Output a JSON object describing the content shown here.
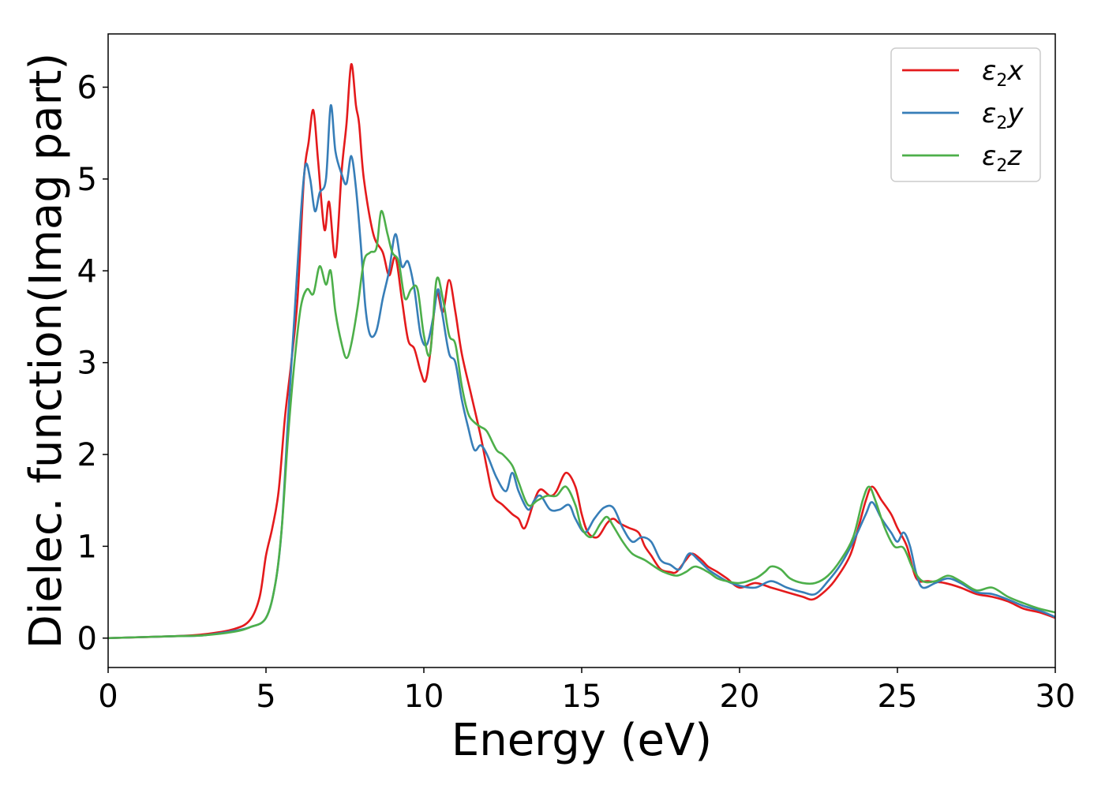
{
  "chart_data": {
    "type": "line",
    "xlabel": "Energy (eV)",
    "ylabel": "Dielec. function(Imag part)",
    "xlim": [
      0,
      30
    ],
    "ylim": [
      -0.32,
      6.58
    ],
    "x_ticks": [
      0,
      5,
      10,
      15,
      20,
      25,
      30
    ],
    "y_ticks": [
      0,
      1,
      2,
      3,
      4,
      5,
      6
    ],
    "grid": false,
    "legend_position": "top-right",
    "series": [
      {
        "name": "ε₂x",
        "legend_main": "ε",
        "legend_sub": "2",
        "legend_suffix": "x",
        "color": "#e41a1c",
        "points": [
          [
            0,
            0
          ],
          [
            2,
            0.02
          ],
          [
            3,
            0.04
          ],
          [
            4,
            0.1
          ],
          [
            4.5,
            0.2
          ],
          [
            4.8,
            0.45
          ],
          [
            5,
            0.9
          ],
          [
            5.2,
            1.2
          ],
          [
            5.4,
            1.6
          ],
          [
            5.6,
            2.4
          ],
          [
            5.8,
            3.0
          ],
          [
            6,
            3.7
          ],
          [
            6.2,
            5.0
          ],
          [
            6.35,
            5.4
          ],
          [
            6.5,
            5.75
          ],
          [
            6.65,
            5.2
          ],
          [
            6.85,
            4.45
          ],
          [
            7.0,
            4.75
          ],
          [
            7.2,
            4.15
          ],
          [
            7.4,
            5.1
          ],
          [
            7.55,
            5.6
          ],
          [
            7.7,
            6.25
          ],
          [
            7.85,
            5.8
          ],
          [
            7.95,
            5.6
          ],
          [
            8.1,
            5.0
          ],
          [
            8.4,
            4.4
          ],
          [
            8.7,
            4.2
          ],
          [
            8.9,
            3.95
          ],
          [
            9.1,
            4.15
          ],
          [
            9.3,
            3.7
          ],
          [
            9.5,
            3.25
          ],
          [
            9.7,
            3.15
          ],
          [
            9.9,
            2.9
          ],
          [
            10.05,
            2.8
          ],
          [
            10.2,
            3.1
          ],
          [
            10.4,
            3.75
          ],
          [
            10.6,
            3.55
          ],
          [
            10.8,
            3.9
          ],
          [
            11.0,
            3.55
          ],
          [
            11.2,
            3.1
          ],
          [
            11.5,
            2.65
          ],
          [
            11.8,
            2.2
          ],
          [
            12.0,
            1.85
          ],
          [
            12.2,
            1.55
          ],
          [
            12.5,
            1.45
          ],
          [
            12.8,
            1.35
          ],
          [
            13.0,
            1.3
          ],
          [
            13.2,
            1.2
          ],
          [
            13.5,
            1.5
          ],
          [
            13.7,
            1.62
          ],
          [
            14.0,
            1.55
          ],
          [
            14.2,
            1.6
          ],
          [
            14.5,
            1.8
          ],
          [
            14.8,
            1.65
          ],
          [
            15.0,
            1.35
          ],
          [
            15.2,
            1.15
          ],
          [
            15.5,
            1.1
          ],
          [
            15.8,
            1.25
          ],
          [
            16.0,
            1.3
          ],
          [
            16.2,
            1.25
          ],
          [
            16.5,
            1.2
          ],
          [
            16.8,
            1.15
          ],
          [
            17.0,
            1.0
          ],
          [
            17.2,
            0.9
          ],
          [
            17.5,
            0.75
          ],
          [
            17.8,
            0.72
          ],
          [
            18.0,
            0.72
          ],
          [
            18.3,
            0.85
          ],
          [
            18.5,
            0.92
          ],
          [
            18.8,
            0.85
          ],
          [
            19.0,
            0.78
          ],
          [
            19.3,
            0.72
          ],
          [
            19.6,
            0.65
          ],
          [
            20.0,
            0.55
          ],
          [
            20.5,
            0.6
          ],
          [
            21.0,
            0.55
          ],
          [
            21.5,
            0.5
          ],
          [
            22.0,
            0.45
          ],
          [
            22.3,
            0.42
          ],
          [
            22.6,
            0.48
          ],
          [
            23.0,
            0.62
          ],
          [
            23.5,
            0.9
          ],
          [
            23.8,
            1.25
          ],
          [
            24.0,
            1.5
          ],
          [
            24.2,
            1.65
          ],
          [
            24.5,
            1.5
          ],
          [
            24.8,
            1.35
          ],
          [
            25.0,
            1.2
          ],
          [
            25.3,
            1.0
          ],
          [
            25.6,
            0.65
          ],
          [
            26.0,
            0.62
          ],
          [
            26.5,
            0.6
          ],
          [
            27.0,
            0.55
          ],
          [
            27.5,
            0.48
          ],
          [
            28.0,
            0.45
          ],
          [
            28.5,
            0.4
          ],
          [
            29.0,
            0.32
          ],
          [
            29.5,
            0.28
          ],
          [
            30,
            0.22
          ]
        ]
      },
      {
        "name": "ε₂y",
        "legend_main": "ε",
        "legend_sub": "2",
        "legend_suffix": "y",
        "color": "#377eb8",
        "points": [
          [
            0,
            0
          ],
          [
            2,
            0.02
          ],
          [
            3,
            0.03
          ],
          [
            4,
            0.08
          ],
          [
            4.5,
            0.12
          ],
          [
            5,
            0.22
          ],
          [
            5.3,
            0.6
          ],
          [
            5.5,
            1.2
          ],
          [
            5.7,
            2.4
          ],
          [
            5.9,
            3.5
          ],
          [
            6.1,
            4.6
          ],
          [
            6.25,
            5.15
          ],
          [
            6.4,
            5.0
          ],
          [
            6.55,
            4.65
          ],
          [
            6.7,
            4.85
          ],
          [
            6.9,
            5.0
          ],
          [
            7.05,
            5.8
          ],
          [
            7.2,
            5.3
          ],
          [
            7.4,
            5.05
          ],
          [
            7.55,
            4.95
          ],
          [
            7.7,
            5.25
          ],
          [
            7.85,
            4.9
          ],
          [
            8.0,
            4.3
          ],
          [
            8.15,
            3.6
          ],
          [
            8.3,
            3.3
          ],
          [
            8.5,
            3.35
          ],
          [
            8.7,
            3.7
          ],
          [
            8.9,
            4.0
          ],
          [
            9.1,
            4.4
          ],
          [
            9.3,
            4.05
          ],
          [
            9.5,
            4.1
          ],
          [
            9.7,
            3.8
          ],
          [
            9.9,
            3.3
          ],
          [
            10.1,
            3.2
          ],
          [
            10.3,
            3.5
          ],
          [
            10.45,
            3.8
          ],
          [
            10.6,
            3.5
          ],
          [
            10.8,
            3.1
          ],
          [
            11.0,
            3.0
          ],
          [
            11.2,
            2.6
          ],
          [
            11.4,
            2.3
          ],
          [
            11.6,
            2.05
          ],
          [
            11.8,
            2.1
          ],
          [
            12.0,
            2.0
          ],
          [
            12.3,
            1.75
          ],
          [
            12.6,
            1.6
          ],
          [
            12.8,
            1.8
          ],
          [
            13.0,
            1.6
          ],
          [
            13.3,
            1.4
          ],
          [
            13.5,
            1.5
          ],
          [
            13.7,
            1.55
          ],
          [
            14.0,
            1.4
          ],
          [
            14.3,
            1.4
          ],
          [
            14.6,
            1.45
          ],
          [
            14.8,
            1.3
          ],
          [
            15.1,
            1.15
          ],
          [
            15.4,
            1.3
          ],
          [
            15.7,
            1.42
          ],
          [
            16.0,
            1.42
          ],
          [
            16.3,
            1.2
          ],
          [
            16.6,
            1.05
          ],
          [
            16.9,
            1.1
          ],
          [
            17.2,
            1.05
          ],
          [
            17.5,
            0.85
          ],
          [
            17.8,
            0.8
          ],
          [
            18.1,
            0.75
          ],
          [
            18.4,
            0.92
          ],
          [
            18.7,
            0.85
          ],
          [
            19.0,
            0.75
          ],
          [
            19.3,
            0.68
          ],
          [
            19.6,
            0.62
          ],
          [
            20.0,
            0.57
          ],
          [
            20.5,
            0.55
          ],
          [
            21.0,
            0.62
          ],
          [
            21.5,
            0.55
          ],
          [
            22.0,
            0.5
          ],
          [
            22.4,
            0.48
          ],
          [
            22.8,
            0.62
          ],
          [
            23.2,
            0.8
          ],
          [
            23.6,
            1.05
          ],
          [
            24.0,
            1.35
          ],
          [
            24.2,
            1.48
          ],
          [
            24.5,
            1.3
          ],
          [
            24.8,
            1.15
          ],
          [
            25.0,
            1.05
          ],
          [
            25.2,
            1.15
          ],
          [
            25.4,
            1.0
          ],
          [
            25.6,
            0.7
          ],
          [
            25.8,
            0.55
          ],
          [
            26.2,
            0.6
          ],
          [
            26.6,
            0.65
          ],
          [
            27.0,
            0.6
          ],
          [
            27.5,
            0.5
          ],
          [
            28.0,
            0.48
          ],
          [
            28.5,
            0.42
          ],
          [
            29.0,
            0.35
          ],
          [
            29.5,
            0.3
          ],
          [
            30,
            0.23
          ]
        ]
      },
      {
        "name": "ε₂z",
        "legend_main": "ε",
        "legend_sub": "2",
        "legend_suffix": "z",
        "color": "#4daf4a",
        "points": [
          [
            0,
            0
          ],
          [
            2,
            0.02
          ],
          [
            3,
            0.03
          ],
          [
            4,
            0.07
          ],
          [
            4.5,
            0.12
          ],
          [
            5,
            0.22
          ],
          [
            5.3,
            0.6
          ],
          [
            5.5,
            1.2
          ],
          [
            5.7,
            2.2
          ],
          [
            5.9,
            3.0
          ],
          [
            6.1,
            3.6
          ],
          [
            6.3,
            3.8
          ],
          [
            6.5,
            3.75
          ],
          [
            6.7,
            4.05
          ],
          [
            6.9,
            3.85
          ],
          [
            7.05,
            4.0
          ],
          [
            7.2,
            3.55
          ],
          [
            7.4,
            3.2
          ],
          [
            7.55,
            3.05
          ],
          [
            7.7,
            3.2
          ],
          [
            7.9,
            3.6
          ],
          [
            8.1,
            4.1
          ],
          [
            8.3,
            4.2
          ],
          [
            8.5,
            4.25
          ],
          [
            8.65,
            4.65
          ],
          [
            8.85,
            4.4
          ],
          [
            9.0,
            4.2
          ],
          [
            9.2,
            4.1
          ],
          [
            9.4,
            3.7
          ],
          [
            9.6,
            3.8
          ],
          [
            9.8,
            3.8
          ],
          [
            10.0,
            3.3
          ],
          [
            10.2,
            3.1
          ],
          [
            10.4,
            3.9
          ],
          [
            10.6,
            3.7
          ],
          [
            10.8,
            3.3
          ],
          [
            11.0,
            3.2
          ],
          [
            11.2,
            2.75
          ],
          [
            11.4,
            2.45
          ],
          [
            11.6,
            2.35
          ],
          [
            11.8,
            2.3
          ],
          [
            12.0,
            2.25
          ],
          [
            12.3,
            2.05
          ],
          [
            12.5,
            2.0
          ],
          [
            12.8,
            1.88
          ],
          [
            13.0,
            1.7
          ],
          [
            13.3,
            1.45
          ],
          [
            13.6,
            1.5
          ],
          [
            13.9,
            1.55
          ],
          [
            14.2,
            1.55
          ],
          [
            14.5,
            1.65
          ],
          [
            14.8,
            1.45
          ],
          [
            15.0,
            1.2
          ],
          [
            15.3,
            1.1
          ],
          [
            15.6,
            1.25
          ],
          [
            15.8,
            1.32
          ],
          [
            16.0,
            1.22
          ],
          [
            16.3,
            1.05
          ],
          [
            16.6,
            0.92
          ],
          [
            17.0,
            0.85
          ],
          [
            17.3,
            0.78
          ],
          [
            17.6,
            0.72
          ],
          [
            18.0,
            0.68
          ],
          [
            18.3,
            0.72
          ],
          [
            18.6,
            0.78
          ],
          [
            19.0,
            0.72
          ],
          [
            19.3,
            0.65
          ],
          [
            19.6,
            0.62
          ],
          [
            20.0,
            0.6
          ],
          [
            20.5,
            0.65
          ],
          [
            20.8,
            0.72
          ],
          [
            21.0,
            0.78
          ],
          [
            21.3,
            0.75
          ],
          [
            21.6,
            0.65
          ],
          [
            22.0,
            0.6
          ],
          [
            22.4,
            0.6
          ],
          [
            22.8,
            0.68
          ],
          [
            23.2,
            0.85
          ],
          [
            23.6,
            1.1
          ],
          [
            23.9,
            1.5
          ],
          [
            24.1,
            1.65
          ],
          [
            24.3,
            1.5
          ],
          [
            24.6,
            1.2
          ],
          [
            24.9,
            1.0
          ],
          [
            25.2,
            0.98
          ],
          [
            25.5,
            0.75
          ],
          [
            25.8,
            0.62
          ],
          [
            26.2,
            0.62
          ],
          [
            26.6,
            0.68
          ],
          [
            27.0,
            0.62
          ],
          [
            27.5,
            0.52
          ],
          [
            28.0,
            0.55
          ],
          [
            28.5,
            0.45
          ],
          [
            29.0,
            0.38
          ],
          [
            29.5,
            0.32
          ],
          [
            30,
            0.28
          ]
        ]
      }
    ]
  }
}
